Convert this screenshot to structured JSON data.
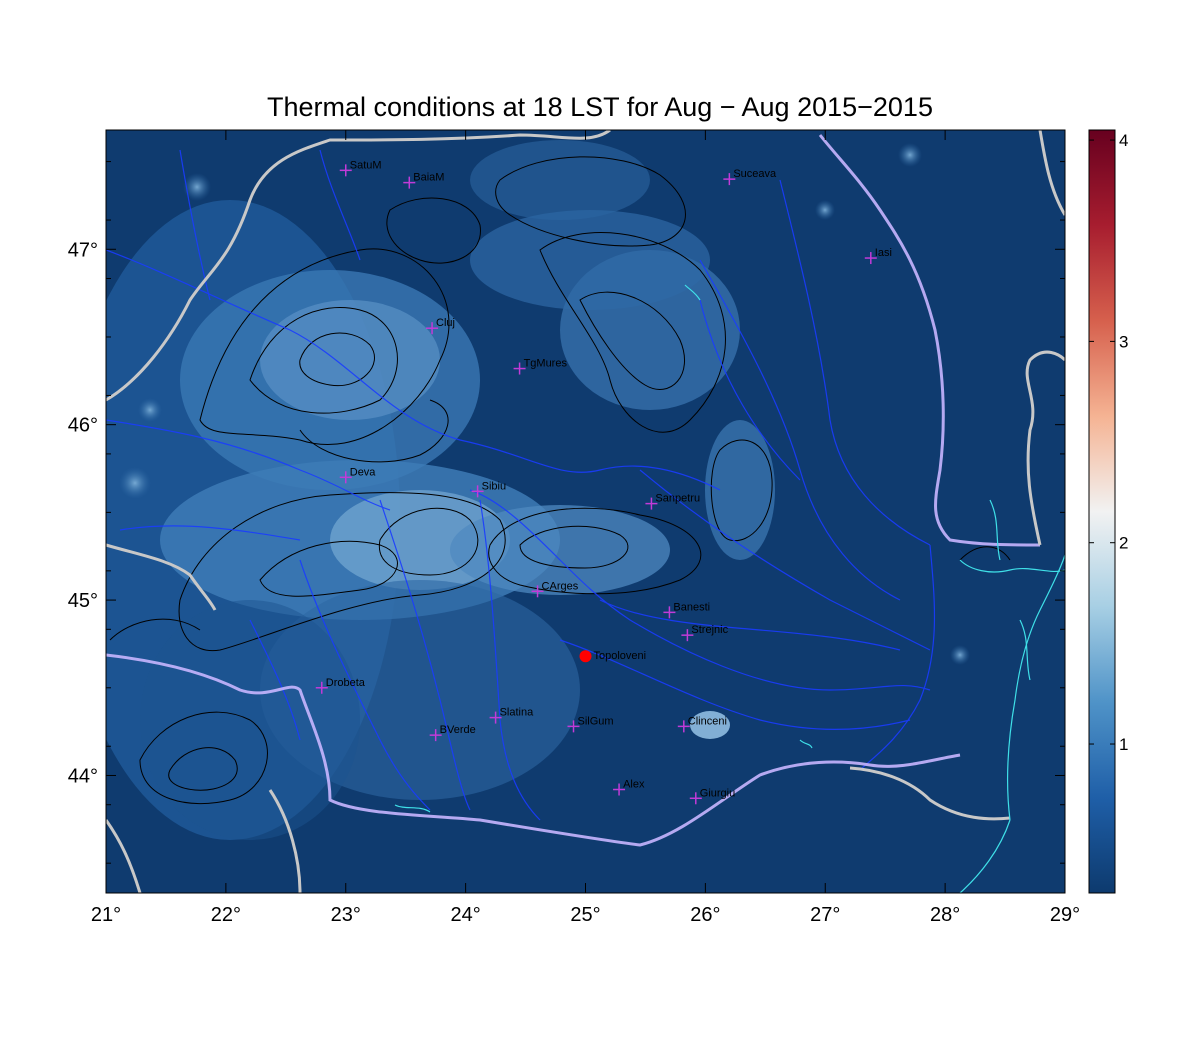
{
  "title": "Thermal conditions at 18 LST for Aug − Aug  2015−2015",
  "x_ticks": [
    "21°",
    "22°",
    "23°",
    "24°",
    "25°",
    "26°",
    "27°",
    "28°",
    "29°"
  ],
  "y_ticks": [
    "44°",
    "45°",
    "46°",
    "47°"
  ],
  "colorbar": {
    "ticks": [
      "1",
      "2",
      "3",
      "4"
    ],
    "colors": [
      "#0d3a6e",
      "#1f5fa8",
      "#4f93c8",
      "#a7cfe4",
      "#f2f2f2",
      "#f5b393",
      "#d6604d",
      "#a71d2f",
      "#67001f"
    ]
  },
  "colors": {
    "background_field": "#0f3b6f",
    "contour": "#000000",
    "rivers": "#1a3cff",
    "borders": "#c8c8c8",
    "coast": "#3fe0e8",
    "city_marker": "#c23bd8",
    "highlight": "#ff0000"
  },
  "cities": [
    {
      "name": "SatuM",
      "lon": 23.0,
      "lat": 47.45
    },
    {
      "name": "BaiaM",
      "lon": 23.53,
      "lat": 47.38
    },
    {
      "name": "Suceava",
      "lon": 26.2,
      "lat": 47.4
    },
    {
      "name": "Iasi",
      "lon": 27.38,
      "lat": 46.95
    },
    {
      "name": "Cluj",
      "lon": 23.72,
      "lat": 46.55
    },
    {
      "name": "TgMures",
      "lon": 24.45,
      "lat": 46.32
    },
    {
      "name": "Deva",
      "lon": 23.0,
      "lat": 45.7
    },
    {
      "name": "Sibiu",
      "lon": 24.1,
      "lat": 45.62
    },
    {
      "name": "Sanpetru",
      "lon": 25.55,
      "lat": 45.55
    },
    {
      "name": "CArges",
      "lon": 24.6,
      "lat": 45.05
    },
    {
      "name": "Banesti",
      "lon": 25.7,
      "lat": 44.93
    },
    {
      "name": "Strejnic",
      "lon": 25.85,
      "lat": 44.8
    },
    {
      "name": "Drobeta",
      "lon": 22.8,
      "lat": 44.5
    },
    {
      "name": "Slatina",
      "lon": 24.25,
      "lat": 44.33
    },
    {
      "name": "SilGum",
      "lon": 24.9,
      "lat": 44.28
    },
    {
      "name": "BVerde",
      "lon": 23.75,
      "lat": 44.23
    },
    {
      "name": "Clinceni",
      "lon": 25.82,
      "lat": 44.28
    },
    {
      "name": "Alex",
      "lon": 25.28,
      "lat": 43.92
    },
    {
      "name": "Giurgiu",
      "lon": 25.92,
      "lat": 43.87
    }
  ],
  "highlight_point": {
    "name": "Topoloveni",
    "lon": 25.0,
    "lat": 44.68
  }
}
